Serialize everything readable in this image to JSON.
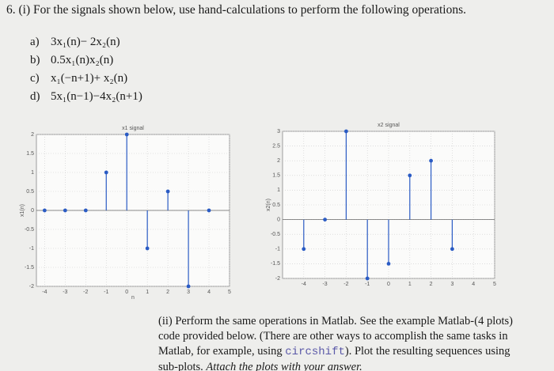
{
  "question": {
    "title": "6. (i) For the signals shown below, use hand-calculations to perform the following operations.",
    "items": [
      {
        "label": "a)",
        "text": "3x₁(n)− 2x₂(n)"
      },
      {
        "label": "b)",
        "text": "0.5x₁(n)x₂(n)"
      },
      {
        "label": "c)",
        "text": "x₁(−n+1)+ x₂(n)"
      },
      {
        "label": "d)",
        "text": "5x₁(n−1)−4x₂(n+1)"
      }
    ]
  },
  "chart_data": [
    {
      "type": "stem",
      "title": "x1 signal",
      "ylabel": "x1(n)",
      "xlabel": "n",
      "x": [
        -4,
        -3,
        -2,
        -1,
        0,
        1,
        2,
        3,
        4
      ],
      "values": [
        0,
        0,
        0,
        1,
        2,
        -1,
        0.5,
        -2,
        0
      ],
      "color": "#2a5bc4",
      "xlim": [
        -4.4,
        5
      ],
      "ylim": [
        -2,
        2
      ],
      "xticks": [
        -4,
        -3,
        -2,
        -1,
        0,
        1,
        2,
        3,
        4,
        5
      ],
      "yticks": [
        -2,
        -1.5,
        -1,
        -0.5,
        0,
        0.5,
        1,
        1.5,
        2
      ],
      "grid": true
    },
    {
      "type": "stem",
      "title": "x2 signal",
      "ylabel": "x2(n)",
      "x": [
        -4,
        -3,
        -2,
        -1,
        0,
        1,
        2,
        3
      ],
      "values": [
        -1,
        0,
        3,
        -2,
        -1.5,
        1.5,
        2,
        -1
      ],
      "color": "#2a5bc4",
      "xlim": [
        -5,
        5
      ],
      "ylim": [
        -2,
        3
      ],
      "xticks": [
        -4,
        -3,
        -2,
        -1,
        0,
        1,
        2,
        3,
        4,
        5
      ],
      "yticks": [
        -2,
        -1.5,
        -1,
        -0.5,
        0,
        0.5,
        1,
        1.5,
        2,
        2.5,
        3
      ],
      "grid": true
    }
  ],
  "part2": {
    "text": "(ii) Perform the same operations in Matlab. See the example Matlab-code provided below. (There are other ways to accomplish the same tasks in Matlab, for example, using ",
    "code": "circshift",
    "text2": "). Plot the resulting sequences using sub-plots. ",
    "italic": "Attach the plots with your answer.",
    "points": "(4 plots)"
  }
}
